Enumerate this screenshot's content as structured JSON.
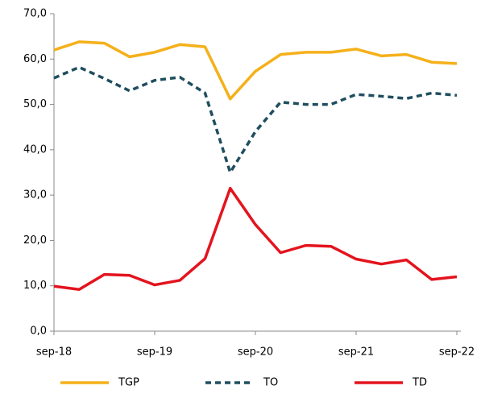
{
  "chart_data": {
    "type": "line",
    "categories": [
      "sep-18",
      null,
      null,
      null,
      "sep-19",
      null,
      null,
      null,
      "sep-20",
      null,
      null,
      null,
      "sep-21",
      null,
      null,
      null,
      "sep-22"
    ],
    "series": [
      {
        "name": "TGP",
        "color": "#f5b01a",
        "line_style": "solid",
        "values": [
          62.0,
          63.8,
          63.5,
          60.5,
          61.5,
          63.2,
          62.7,
          51.2,
          57.3,
          61.0,
          61.5,
          61.5,
          62.2,
          60.7,
          61.0,
          59.3,
          59.0
        ]
      },
      {
        "name": "TO",
        "color": "#1f4e5f",
        "line_style": "dashed",
        "values": [
          55.8,
          58.2,
          55.7,
          53.0,
          55.3,
          56.0,
          52.5,
          35.0,
          44.0,
          50.5,
          50.0,
          50.0,
          52.2,
          51.8,
          51.3,
          52.5,
          52.0
        ]
      },
      {
        "name": "TD",
        "color": "#e3141e",
        "line_style": "solid",
        "values": [
          9.9,
          9.2,
          12.5,
          12.3,
          10.2,
          11.2,
          16.0,
          31.5,
          23.5,
          17.3,
          18.9,
          18.7,
          15.9,
          14.8,
          15.7,
          11.4,
          12.0
        ]
      }
    ],
    "ylim": [
      0,
      70
    ],
    "yticks": [
      {
        "value": 0,
        "label": "0,0"
      },
      {
        "value": 10,
        "label": "10,0"
      },
      {
        "value": 20,
        "label": "20,0"
      },
      {
        "value": 30,
        "label": "30,0"
      },
      {
        "value": 40,
        "label": "40,0"
      },
      {
        "value": 50,
        "label": "50,0"
      },
      {
        "value": 60,
        "label": "60,0"
      },
      {
        "value": 70,
        "label": "70,0"
      }
    ],
    "grid": false,
    "legend": "bottom"
  }
}
